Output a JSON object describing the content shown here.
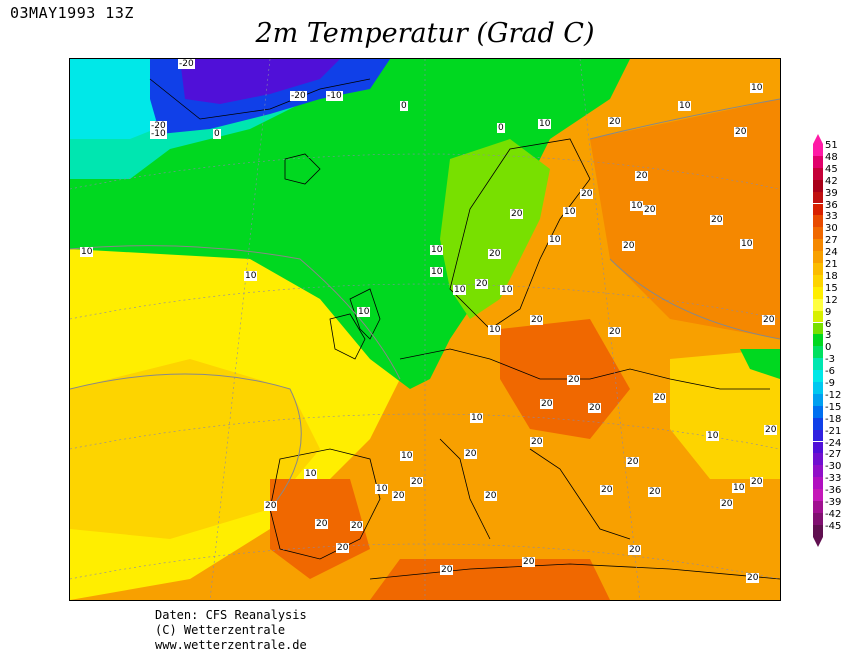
{
  "header": {
    "run_time": "03MAY1993 13Z",
    "title": "2m Temperatur (Grad C)"
  },
  "credits": {
    "line1": "Daten: CFS Reanalysis",
    "line2": "(C) Wetterzentrale",
    "line3": "www.wetterzentrale.de"
  },
  "legend": {
    "labels": [
      "51",
      "48",
      "45",
      "42",
      "39",
      "36",
      "33",
      "30",
      "27",
      "24",
      "21",
      "18",
      "15",
      "12",
      "9",
      "6",
      "3",
      "0",
      "-3",
      "-6",
      "-9",
      "-12",
      "-15",
      "-18",
      "-21",
      "-24",
      "-27",
      "-30",
      "-33",
      "-36",
      "-39",
      "-42",
      "-45"
    ],
    "colors": [
      "#ff1aa6",
      "#e0006b",
      "#c40038",
      "#a80018",
      "#c01010",
      "#d82000",
      "#e84a00",
      "#f06800",
      "#f58800",
      "#f8a000",
      "#fbbc00",
      "#fdd400",
      "#ffee00",
      "#ffff40",
      "#d8f000",
      "#78e000",
      "#00d820",
      "#00e060",
      "#00e6b0",
      "#00e8e8",
      "#00c8f0",
      "#00a0f0",
      "#0070f0",
      "#1040e8",
      "#3020e0",
      "#5010d8",
      "#7010d0",
      "#9010c8",
      "#b010c0",
      "#c418b8",
      "#a01090",
      "#801070",
      "#601050"
    ]
  },
  "contour_labels": [
    "-20",
    "-20",
    "-10",
    "0",
    "-20",
    "-10",
    "0",
    "0",
    "10",
    "10",
    "20",
    "10",
    "10",
    "20",
    "20",
    "10",
    "20",
    "20",
    "20",
    "10",
    "10",
    "20",
    "10",
    "10",
    "10",
    "20",
    "10",
    "20",
    "10",
    "10",
    "20",
    "10",
    "20",
    "10",
    "20",
    "20",
    "20",
    "20",
    "20",
    "20",
    "10",
    "20",
    "20",
    "10",
    "20",
    "20",
    "20",
    "10",
    "20",
    "20",
    "20",
    "20",
    "20",
    "20",
    "20",
    "20",
    "20",
    "20",
    "10",
    "10",
    "10",
    "20",
    "20",
    "20",
    "20"
  ]
}
